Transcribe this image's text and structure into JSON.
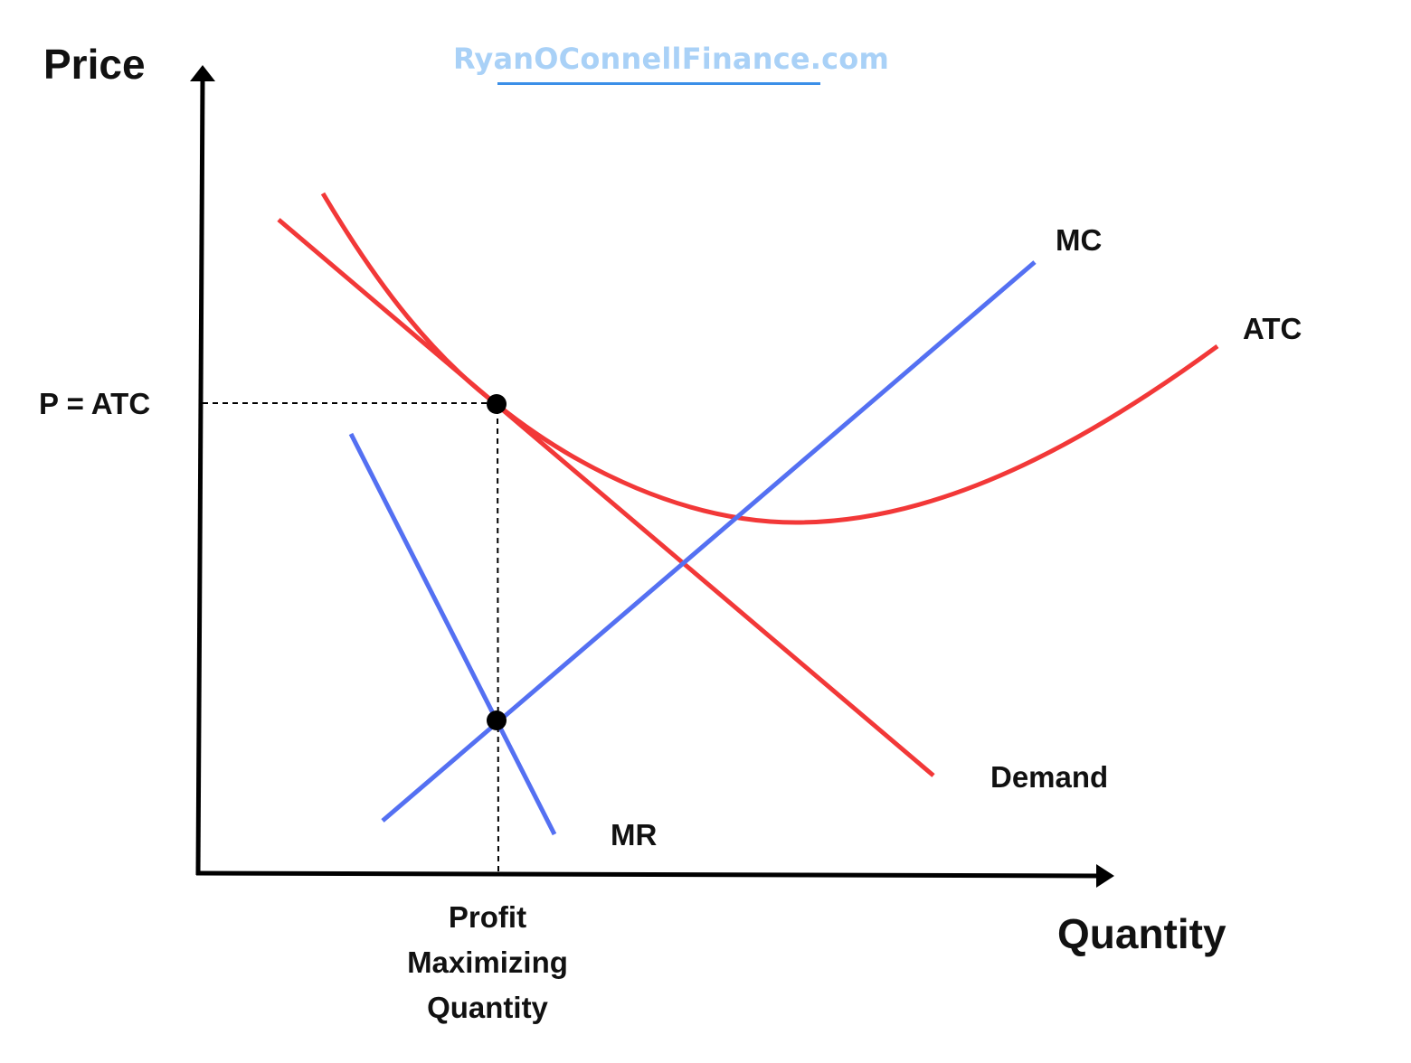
{
  "watermark": {
    "text": "RyanOConnellFinance.com",
    "color": "#a9d1f7",
    "underline_color": "#3b8fe8"
  },
  "axes": {
    "y_title": "Price",
    "x_title": "Quantity"
  },
  "colors": {
    "cost_curves": "#f23838",
    "revenue_curves": "#5470f2",
    "axes": "#000000",
    "guides": "#000000"
  },
  "curves": {
    "mc": {
      "label": "MC"
    },
    "atc": {
      "label": "ATC"
    },
    "demand": {
      "label": "Demand"
    },
    "mr": {
      "label": "MR"
    }
  },
  "annotations": {
    "price_level": "P = ATC",
    "quantity_level": "Profit\nMaximizing\nQuantity"
  },
  "points": [
    {
      "name": "price-equals-atc-point",
      "meaning": "Demand tangent to ATC"
    },
    {
      "name": "mr-equals-mc-point",
      "meaning": "MR = MC"
    }
  ]
}
